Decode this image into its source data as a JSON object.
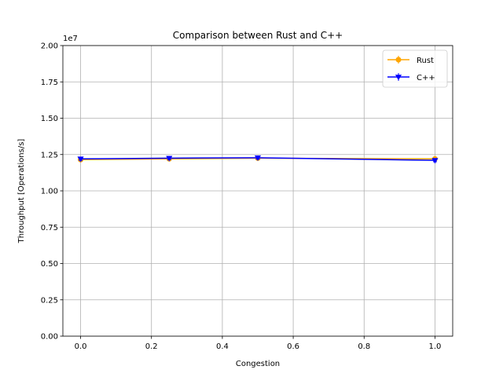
{
  "chart_data": {
    "type": "line",
    "title": "Comparison between Rust and C++",
    "xlabel": "Congestion",
    "ylabel": "Throughput [Operations/s]",
    "y_offset_text": "1e7",
    "x": [
      0.0,
      0.25,
      0.5,
      1.0
    ],
    "xlim": [
      -0.05,
      1.05
    ],
    "ylim": [
      0,
      20000000
    ],
    "xticks": [
      0.0,
      0.2,
      0.4,
      0.6,
      0.8,
      1.0
    ],
    "xtick_labels": [
      "0.0",
      "0.2",
      "0.4",
      "0.6",
      "0.8",
      "1.0"
    ],
    "yticks": [
      0,
      2500000,
      5000000,
      7500000,
      10000000,
      12500000,
      15000000,
      17500000,
      20000000
    ],
    "ytick_labels": [
      "0.00",
      "0.25",
      "0.50",
      "0.75",
      "1.00",
      "1.25",
      "1.50",
      "1.75",
      "2.00"
    ],
    "grid": true,
    "legend_position": "top-right",
    "series": [
      {
        "name": "Rust",
        "color": "#ffa500",
        "marker": "circle",
        "values": [
          12150000,
          12200000,
          12250000,
          12200000
        ],
        "errors": [
          100000,
          100000,
          100000,
          100000
        ]
      },
      {
        "name": "C++",
        "color": "#0000ff",
        "marker": "triangle-down",
        "values": [
          12200000,
          12250000,
          12280000,
          12100000
        ],
        "errors": [
          100000,
          100000,
          100000,
          100000
        ]
      }
    ]
  }
}
